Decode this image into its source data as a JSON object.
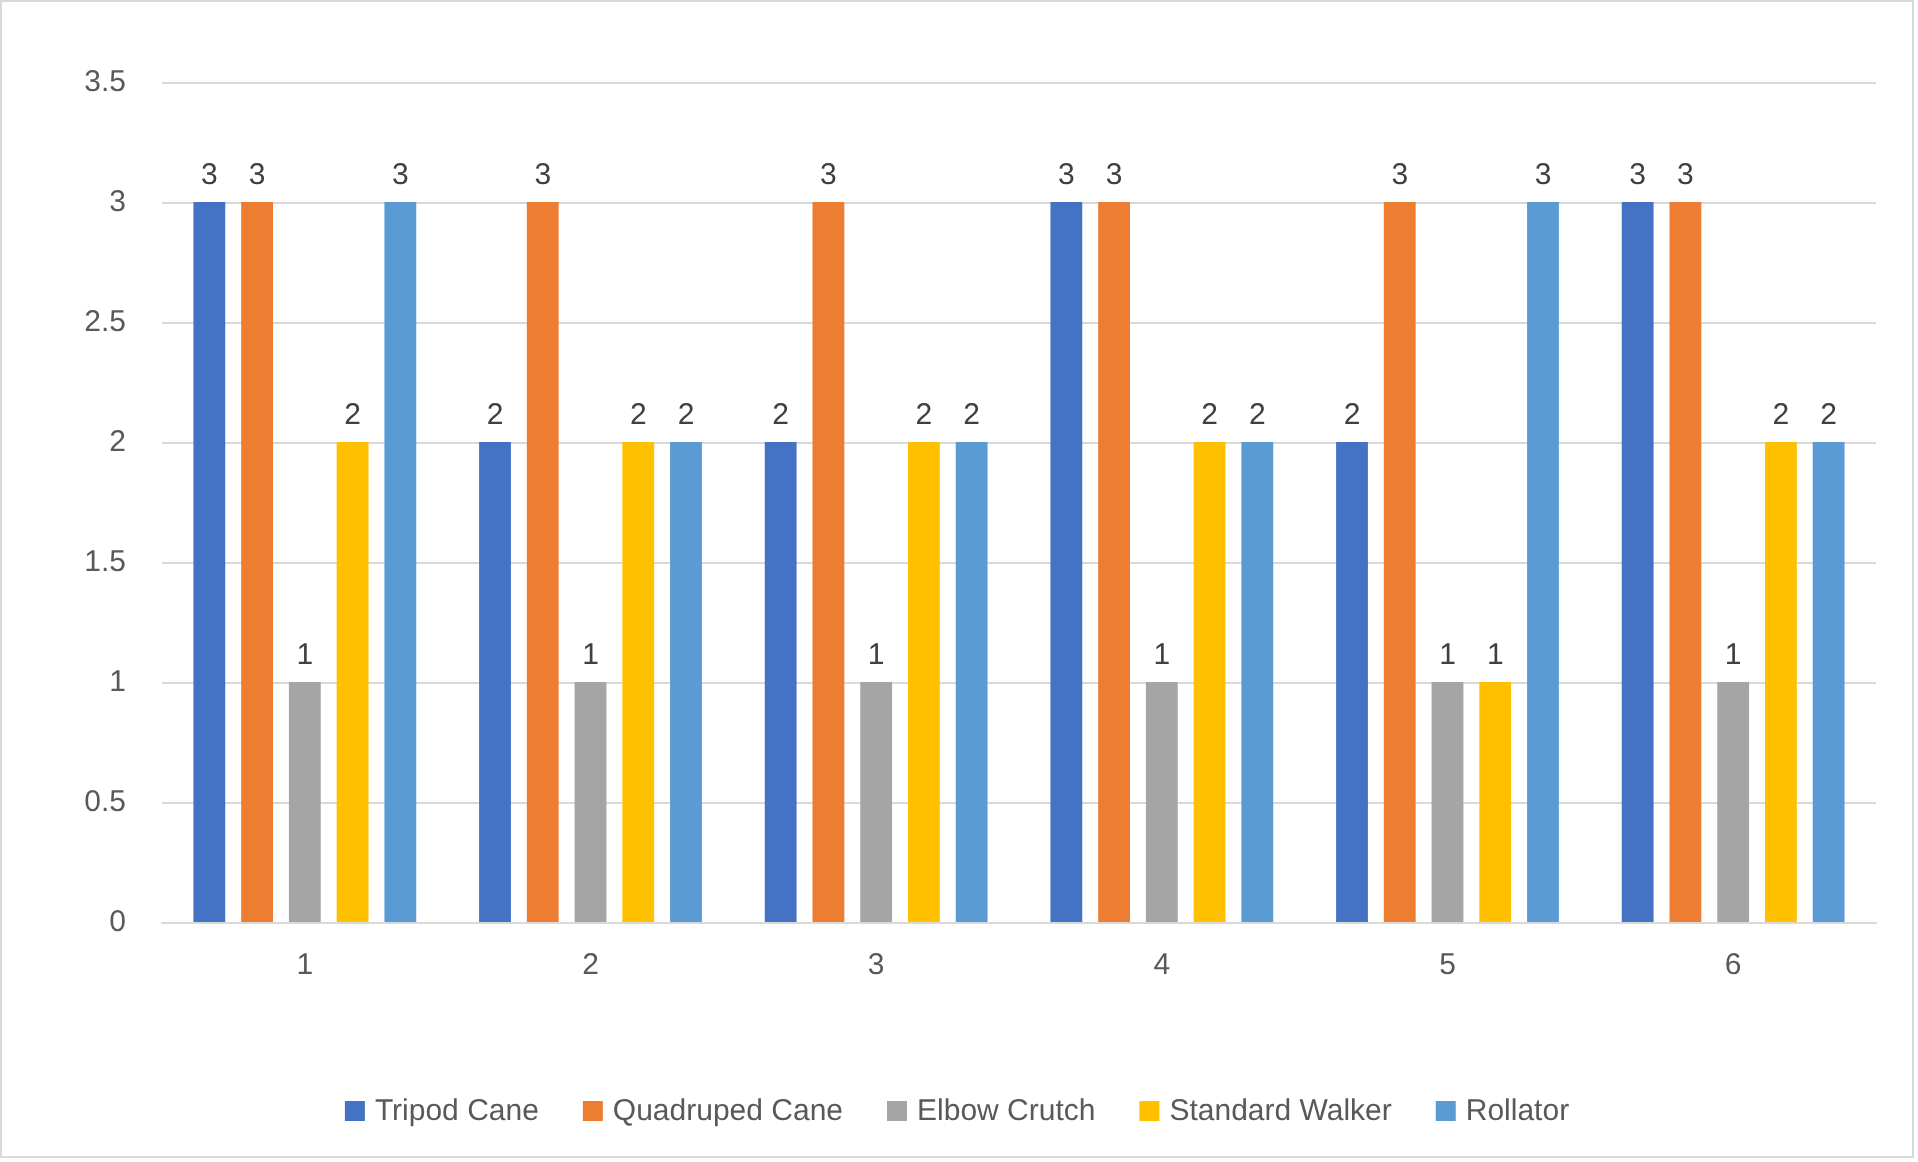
{
  "chart_data": {
    "type": "bar",
    "categories": [
      "1",
      "2",
      "3",
      "4",
      "5",
      "6"
    ],
    "series": [
      {
        "name": "Tripod Cane",
        "color": "#4472c4",
        "values": [
          3,
          2,
          2,
          3,
          2,
          3
        ]
      },
      {
        "name": "Quadruped Cane",
        "color": "#ed7d31",
        "values": [
          3,
          3,
          3,
          3,
          3,
          3
        ]
      },
      {
        "name": "Elbow Crutch",
        "color": "#a5a5a5",
        "values": [
          1,
          1,
          1,
          1,
          1,
          1
        ]
      },
      {
        "name": "Standard Walker",
        "color": "#ffc000",
        "values": [
          2,
          2,
          2,
          2,
          1,
          2
        ]
      },
      {
        "name": "Rollator",
        "color": "#5b9bd5",
        "values": [
          3,
          2,
          2,
          2,
          3,
          2
        ]
      }
    ],
    "ylim": [
      0,
      3.5
    ],
    "yticks": [
      0,
      0.5,
      1,
      1.5,
      2,
      2.5,
      3,
      3.5
    ],
    "grid": "y",
    "legend": "bottom",
    "data_labels": true
  }
}
